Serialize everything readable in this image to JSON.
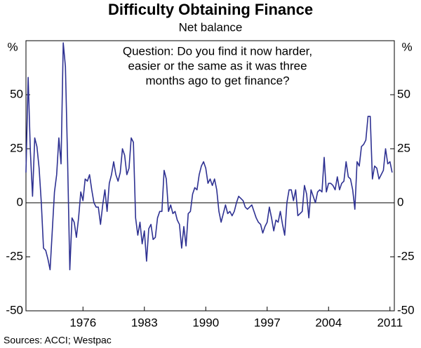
{
  "chart_data": {
    "type": "line",
    "title": "Difficulty Obtaining Finance",
    "subtitle": "Net balance",
    "annotation": [
      "Question: Do you find it now harder,",
      "easier or the same as it was three",
      "months ago to get finance?"
    ],
    "y_unit": "%",
    "source": "Sources: ACCI; Westpac",
    "xlim": [
      1970,
      2012
    ],
    "xticks": [
      {
        "value": 1976.5,
        "label": "1976"
      },
      {
        "value": 1983.5,
        "label": "1983"
      },
      {
        "value": 1990.5,
        "label": "1990"
      },
      {
        "value": 1997.5,
        "label": "1997"
      },
      {
        "value": 2004.5,
        "label": "2004"
      },
      {
        "value": 2011.5,
        "label": "2011"
      }
    ],
    "ylim": [
      -50,
      75
    ],
    "yticks": [
      -50,
      -25,
      0,
      25,
      50
    ],
    "x": [
      1970,
      1970.25,
      1970.5,
      1970.75,
      1971,
      1971.25,
      1971.5,
      1971.75,
      1972,
      1972.25,
      1972.5,
      1972.75,
      1973,
      1973.25,
      1973.5,
      1973.75,
      1974,
      1974.25,
      1974.5,
      1974.75,
      1975,
      1975.25,
      1975.5,
      1975.75,
      1976,
      1976.25,
      1976.5,
      1976.75,
      1977,
      1977.25,
      1977.5,
      1977.75,
      1978,
      1978.25,
      1978.5,
      1978.75,
      1979,
      1979.25,
      1979.5,
      1979.75,
      1980,
      1980.25,
      1980.5,
      1980.75,
      1981,
      1981.25,
      1981.5,
      1981.75,
      1982,
      1982.25,
      1982.5,
      1982.75,
      1983,
      1983.25,
      1983.5,
      1983.75,
      1984,
      1984.25,
      1984.5,
      1984.75,
      1985,
      1985.25,
      1985.5,
      1985.75,
      1986,
      1986.25,
      1986.5,
      1986.75,
      1987,
      1987.25,
      1987.5,
      1987.75,
      1988,
      1988.25,
      1988.5,
      1988.75,
      1989,
      1989.25,
      1989.5,
      1989.75,
      1990,
      1990.25,
      1990.5,
      1990.75,
      1991,
      1991.25,
      1991.5,
      1991.75,
      1992,
      1992.25,
      1992.5,
      1992.75,
      1993,
      1993.25,
      1993.5,
      1993.75,
      1994,
      1994.25,
      1994.5,
      1994.75,
      1995,
      1995.25,
      1995.5,
      1995.75,
      1996,
      1996.25,
      1996.5,
      1996.75,
      1997,
      1997.25,
      1997.5,
      1997.75,
      1998,
      1998.25,
      1998.5,
      1998.75,
      1999,
      1999.25,
      1999.5,
      1999.75,
      2000,
      2000.25,
      2000.5,
      2000.75,
      2001,
      2001.25,
      2001.5,
      2001.75,
      2002,
      2002.25,
      2002.5,
      2002.75,
      2003,
      2003.25,
      2003.5,
      2003.75,
      2004,
      2004.25,
      2004.5,
      2004.75,
      2005,
      2005.25,
      2005.5,
      2005.75,
      2006,
      2006.25,
      2006.5,
      2006.75,
      2007,
      2007.25,
      2007.5,
      2007.75,
      2008,
      2008.25,
      2008.5,
      2008.75,
      2009,
      2009.25,
      2009.5,
      2009.75,
      2010,
      2010.25,
      2010.5,
      2010.75,
      2011,
      2011.25,
      2011.5,
      2011.75
    ],
    "series": [
      {
        "color": "#2e3192",
        "values": [
          14,
          58,
          24,
          3,
          30,
          26,
          16,
          0,
          -21,
          -22,
          -26,
          -31,
          -13,
          5,
          13,
          30,
          18,
          74,
          63,
          19,
          -31,
          -7,
          -9,
          -16,
          -7,
          5,
          1,
          11,
          10,
          13,
          6,
          0,
          -2,
          -2,
          -10,
          -1,
          6,
          -4,
          9,
          13,
          19,
          13,
          10,
          14,
          25,
          22,
          13,
          16,
          30,
          28,
          -7,
          -15,
          -9,
          -19,
          -13,
          -27,
          -12,
          -10,
          -17,
          -16,
          -7,
          -4,
          -4,
          15,
          11,
          -4,
          -1,
          -5,
          -4,
          -8,
          -10,
          -21,
          -11,
          -20,
          -5,
          -4,
          4,
          7,
          6,
          13,
          17,
          19,
          16,
          9,
          11,
          8,
          11,
          6,
          -4,
          -9,
          -5,
          -1,
          -5,
          -4,
          -6,
          -4,
          0,
          3,
          2,
          1,
          -2,
          -3,
          -2,
          -1,
          -4,
          -7,
          -9,
          -10,
          -14,
          -11,
          -9,
          -2,
          -7,
          -13,
          -8,
          -9,
          -4,
          -10,
          -15,
          0,
          6,
          6,
          1,
          6,
          -6,
          -5,
          -4,
          8,
          4,
          -7,
          6,
          3,
          0,
          5,
          6,
          5,
          21,
          5,
          9,
          9,
          8,
          6,
          12,
          6,
          9,
          10,
          19,
          12,
          11,
          6,
          -3,
          19,
          17,
          26,
          27,
          29,
          40,
          40,
          11,
          17,
          16,
          11,
          13,
          15,
          25,
          18,
          19,
          14
        ]
      }
    ]
  }
}
